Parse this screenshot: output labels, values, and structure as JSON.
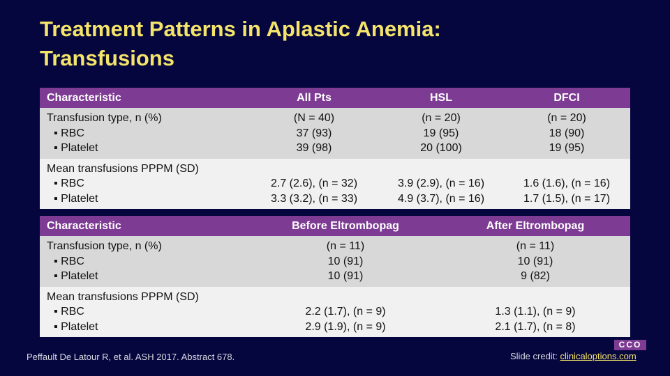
{
  "title": [
    "Treatment Patterns in Aplastic Anemia:",
    "Transfusions"
  ],
  "tables": [
    {
      "header": [
        "Characteristic",
        "All Pts",
        "HSL",
        "DFCI"
      ],
      "rows": [
        [
          [
            "Transfusion type, n (%)",
            "▪ RBC",
            "▪ Platelet"
          ],
          [
            "(N = 40)",
            "37 (93)",
            "39 (98)"
          ],
          [
            "(n = 20)",
            "19 (95)",
            "20 (100)"
          ],
          [
            "(n = 20)",
            "18 (90)",
            "19 (95)"
          ]
        ],
        [
          [
            "Mean transfusions PPPM (SD)",
            "▪ RBC",
            "▪ Platelet"
          ],
          [
            "2.7 (2.6), (n = 32)",
            "3.3 (3.2), (n = 33)"
          ],
          [
            "3.9 (2.9), (n = 16)",
            "4.9 (3.7), (n = 16)"
          ],
          [
            "1.6 (1.6), (n = 16)",
            "1.7 (1.5), (n = 17)"
          ]
        ]
      ]
    },
    {
      "header": [
        "Characteristic",
        "Before Eltrombopag",
        "After Eltrombopag"
      ],
      "rows": [
        [
          [
            "Transfusion type, n (%)",
            "▪ RBC",
            "▪ Platelet"
          ],
          [
            "(n = 11)",
            "10 (91)",
            "10 (91)"
          ],
          [
            "(n = 11)",
            "10 (91)",
            "9 (82)"
          ]
        ],
        [
          [
            "Mean transfusions PPPM (SD)",
            "▪ RBC",
            "▪ Platelet"
          ],
          [
            "2.2 (1.7), (n = 9)",
            "2.9 (1.9), (n = 9)"
          ],
          [
            "1.3 (1.1), (n = 9)",
            "2.1 (1.7), (n = 8)"
          ]
        ]
      ]
    }
  ],
  "footer": {
    "citation": "Peffault De Latour R, et al. ASH 2017. Abstract 678.",
    "credit_label": "Slide credit:",
    "credit_link": "clinicaloptions.com"
  },
  "logo": "CCO"
}
